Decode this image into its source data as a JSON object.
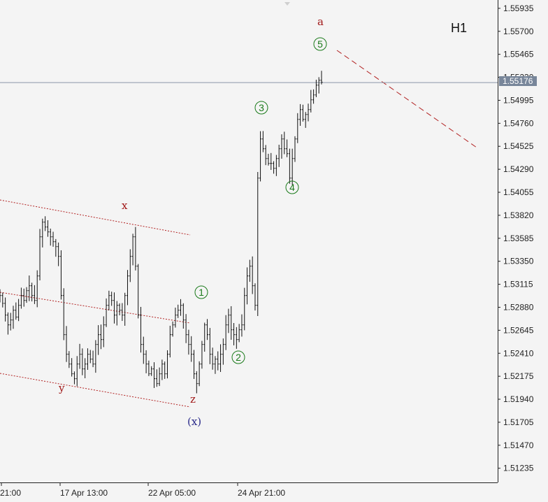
{
  "timeframe": "H1",
  "colors": {
    "background": "#f4f4f4",
    "bars": "#111111",
    "axis": "#222222",
    "price_line": "#8a96a8",
    "price_tag": "#78869a",
    "trend_dotted": "#b22222",
    "projection_dashed": "#b22222",
    "wave_green": "#1a7a1a",
    "wave_red": "#a11818",
    "wave_blue": "#2a2a8a"
  },
  "chart_data": {
    "type": "ohlc",
    "symbol_timeframe": "H1",
    "y_ticks": [
      "1.55935",
      "1.55700",
      "1.55465",
      "1.55230",
      "1.54995",
      "1.54760",
      "1.54525",
      "1.54290",
      "1.54055",
      "1.53820",
      "1.53585",
      "1.53350",
      "1.53115",
      "1.52880",
      "1.52645",
      "1.52410",
      "1.52175",
      "1.51940",
      "1.51705",
      "1.51470",
      "1.51235"
    ],
    "ylim": [
      1.5109,
      1.5602
    ],
    "x_ticks": [
      "21:00",
      "17 Apr 13:00",
      "22 Apr 05:00",
      "24 Apr 21:00"
    ],
    "current_price": "1.55176",
    "current_price_value": 1.55176,
    "close_series": [
      1.53,
      1.5292,
      1.528,
      1.527,
      1.5275,
      1.5285,
      1.5278,
      1.529,
      1.53,
      1.5295,
      1.5305,
      1.531,
      1.53,
      1.5295,
      1.532,
      1.536,
      1.5375,
      1.537,
      1.5365,
      1.536,
      1.5355,
      1.535,
      1.534,
      1.53,
      1.526,
      1.524,
      1.523,
      1.522,
      1.5215,
      1.523,
      1.524,
      1.5225,
      1.523,
      1.524,
      1.5235,
      1.523,
      1.525,
      1.526,
      1.5255,
      1.527,
      1.529,
      1.53,
      1.5295,
      1.528,
      1.529,
      1.5285,
      1.528,
      1.53,
      1.532,
      1.534,
      1.536,
      1.533,
      1.528,
      1.525,
      1.524,
      1.523,
      1.522,
      1.5225,
      1.5215,
      1.521,
      1.522,
      1.523,
      1.522,
      1.524,
      1.526,
      1.527,
      1.528,
      1.5285,
      1.529,
      1.5275,
      1.526,
      1.525,
      1.524,
      1.522,
      1.521,
      1.523,
      1.525,
      1.527,
      1.526,
      1.524,
      1.523,
      1.5235,
      1.523,
      1.524,
      1.525,
      1.527,
      1.528,
      1.5265,
      1.526,
      1.5255,
      1.5265,
      1.527,
      1.53,
      1.532,
      1.533,
      1.531,
      1.529,
      1.542,
      1.546,
      1.545,
      1.544,
      1.5435,
      1.5435,
      1.543,
      1.544,
      1.545,
      1.546,
      1.545,
      1.5445,
      1.542,
      1.544,
      1.546,
      1.548,
      1.549,
      1.548,
      1.5485,
      1.549,
      1.55,
      1.5505,
      1.5515,
      1.552,
      1.5518
    ],
    "wave_labels": [
      {
        "text": "a",
        "color": "red",
        "circled": false
      },
      {
        "text": "5",
        "color": "green",
        "circled": true
      },
      {
        "text": "3",
        "color": "green",
        "circled": true
      },
      {
        "text": "4",
        "color": "green",
        "circled": true
      },
      {
        "text": "1",
        "color": "green",
        "circled": true
      },
      {
        "text": "2",
        "color": "green",
        "circled": true
      },
      {
        "text": "x",
        "color": "red",
        "circled": false
      },
      {
        "text": "y",
        "color": "red",
        "circled": false
      },
      {
        "text": "z",
        "color": "red",
        "circled": false
      },
      {
        "text": "(x)",
        "color": "blue",
        "circled": false
      }
    ],
    "grid": false
  }
}
